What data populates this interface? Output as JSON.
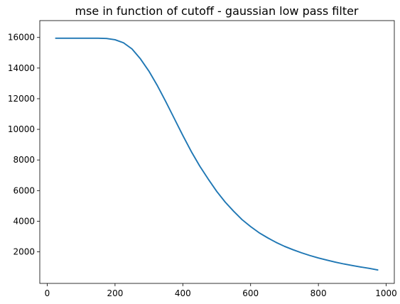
{
  "chart_data": {
    "type": "line",
    "title": "mse in function of cutoff - gaussian low pass filter",
    "xlabel": "",
    "ylabel": "",
    "xlim": [
      -22,
      1024
    ],
    "ylim": [
      -60,
      17100
    ],
    "xticks": [
      0,
      200,
      400,
      600,
      800,
      1000
    ],
    "yticks": [
      2000,
      4000,
      6000,
      8000,
      10000,
      12000,
      14000,
      16000
    ],
    "grid": false,
    "line_color": "#1f77b4",
    "series": [
      {
        "x": [
          25,
          50,
          75,
          100,
          125,
          150,
          175,
          200,
          225,
          250,
          275,
          300,
          325,
          350,
          375,
          400,
          425,
          450,
          475,
          500,
          525,
          550,
          575,
          600,
          625,
          650,
          675,
          700,
          725,
          750,
          775,
          800,
          825,
          850,
          875,
          900,
          925,
          950,
          975
        ],
        "y": [
          15950,
          15950,
          15950,
          15950,
          15950,
          15950,
          15930,
          15850,
          15650,
          15250,
          14600,
          13800,
          12850,
          11800,
          10700,
          9600,
          8550,
          7600,
          6750,
          5950,
          5250,
          4650,
          4100,
          3650,
          3250,
          2920,
          2620,
          2360,
          2140,
          1940,
          1760,
          1600,
          1460,
          1330,
          1210,
          1110,
          1010,
          920,
          820
        ]
      }
    ]
  }
}
